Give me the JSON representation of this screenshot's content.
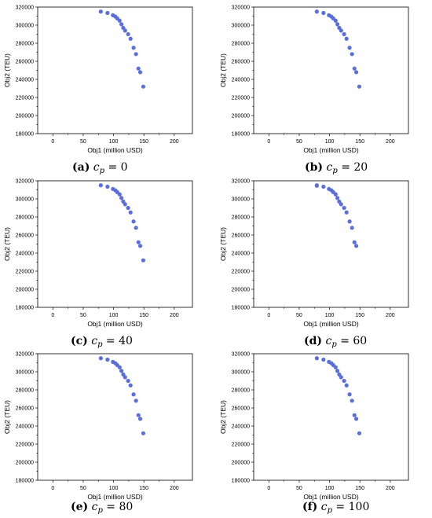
{
  "chart_data": [
    {
      "type": "scatter",
      "label": "(a)",
      "param": "c",
      "param_sub": "p",
      "param_value": "0",
      "xlabel": "Obj1 (million USD)",
      "ylabel": "Obj2 (TEU)",
      "xlim": [
        -25,
        230
      ],
      "ylim": [
        180000,
        320000
      ],
      "xticks": [
        0,
        50,
        100,
        150,
        200
      ],
      "yticks": [
        180000,
        200000,
        220000,
        240000,
        260000,
        280000,
        300000,
        320000
      ],
      "marker_color": "#5b6fdc",
      "points": [
        [
          79,
          315000
        ],
        [
          90,
          313500
        ],
        [
          99,
          311000
        ],
        [
          103,
          309500
        ],
        [
          106,
          307500
        ],
        [
          110,
          305000
        ],
        [
          113,
          301000
        ],
        [
          116,
          297000
        ],
        [
          119,
          294000
        ],
        [
          124,
          290000
        ],
        [
          128,
          285000
        ],
        [
          133,
          275000
        ],
        [
          137,
          268000
        ],
        [
          141,
          252000
        ],
        [
          144,
          248000
        ],
        [
          149,
          232000
        ]
      ]
    },
    {
      "type": "scatter",
      "label": "(b)",
      "param": "c",
      "param_sub": "p",
      "param_value": "20",
      "xlabel": "Obj1 (million USD)",
      "ylabel": "Obj2 (TEU)",
      "xlim": [
        -25,
        230
      ],
      "ylim": [
        180000,
        320000
      ],
      "xticks": [
        0,
        50,
        100,
        150,
        200
      ],
      "yticks": [
        180000,
        200000,
        220000,
        240000,
        260000,
        280000,
        300000,
        320000
      ],
      "marker_color": "#5b6fdc",
      "points": [
        [
          79,
          315000
        ],
        [
          90,
          313500
        ],
        [
          99,
          311000
        ],
        [
          103,
          309500
        ],
        [
          106,
          307500
        ],
        [
          110,
          305000
        ],
        [
          113,
          301000
        ],
        [
          116,
          297000
        ],
        [
          119,
          294000
        ],
        [
          124,
          290000
        ],
        [
          128,
          285000
        ],
        [
          133,
          275000
        ],
        [
          137,
          268000
        ],
        [
          141,
          252000
        ],
        [
          144,
          248000
        ],
        [
          149,
          232000
        ]
      ]
    },
    {
      "type": "scatter",
      "label": "(c)",
      "param": "c",
      "param_sub": "p",
      "param_value": "40",
      "xlabel": "Obj1 (million USD)",
      "ylabel": "Obj2 (TEU)",
      "xlim": [
        -25,
        230
      ],
      "ylim": [
        180000,
        320000
      ],
      "xticks": [
        0,
        50,
        100,
        150,
        200
      ],
      "yticks": [
        180000,
        200000,
        220000,
        240000,
        260000,
        280000,
        300000,
        320000
      ],
      "marker_color": "#5b6fdc",
      "points": [
        [
          79,
          315000
        ],
        [
          90,
          313500
        ],
        [
          99,
          311000
        ],
        [
          103,
          309500
        ],
        [
          106,
          307500
        ],
        [
          110,
          305000
        ],
        [
          113,
          301000
        ],
        [
          116,
          297000
        ],
        [
          119,
          294000
        ],
        [
          124,
          290000
        ],
        [
          128,
          285000
        ],
        [
          133,
          275000
        ],
        [
          137,
          268000
        ],
        [
          141,
          252000
        ],
        [
          144,
          248000
        ],
        [
          149,
          232000
        ]
      ]
    },
    {
      "type": "scatter",
      "label": "(d)",
      "param": "c",
      "param_sub": "p",
      "param_value": "60",
      "xlabel": "Obj1 (million USD)",
      "ylabel": "Obj2 (TEU)",
      "xlim": [
        -25,
        230
      ],
      "ylim": [
        180000,
        320000
      ],
      "xticks": [
        0,
        50,
        100,
        150,
        200
      ],
      "yticks": [
        180000,
        200000,
        220000,
        240000,
        260000,
        280000,
        300000,
        320000
      ],
      "marker_color": "#5b6fdc",
      "points": [
        [
          79,
          315000
        ],
        [
          79,
          314500
        ],
        [
          90,
          313500
        ],
        [
          99,
          311000
        ],
        [
          103,
          309500
        ],
        [
          106,
          307500
        ],
        [
          110,
          305000
        ],
        [
          113,
          301000
        ],
        [
          116,
          297000
        ],
        [
          119,
          294000
        ],
        [
          124,
          290000
        ],
        [
          128,
          285000
        ],
        [
          133,
          275000
        ],
        [
          137,
          268000
        ],
        [
          141,
          252000
        ],
        [
          144,
          248000
        ]
      ]
    },
    {
      "type": "scatter",
      "label": "(e)",
      "param": "c",
      "param_sub": "p",
      "param_value": "80",
      "xlabel": "Obj1 (million USD)",
      "ylabel": "Obj2 (TEU)",
      "xlim": [
        -25,
        230
      ],
      "ylim": [
        180000,
        320000
      ],
      "xticks": [
        0,
        50,
        100,
        150,
        200
      ],
      "yticks": [
        180000,
        200000,
        220000,
        240000,
        260000,
        280000,
        300000,
        320000
      ],
      "marker_color": "#5b6fdc",
      "points": [
        [
          79,
          315000
        ],
        [
          90,
          313500
        ],
        [
          99,
          311000
        ],
        [
          103,
          309500
        ],
        [
          106,
          307500
        ],
        [
          110,
          305000
        ],
        [
          113,
          301000
        ],
        [
          116,
          297000
        ],
        [
          119,
          294000
        ],
        [
          124,
          290000
        ],
        [
          128,
          285000
        ],
        [
          133,
          275000
        ],
        [
          137,
          268000
        ],
        [
          141,
          252000
        ],
        [
          144,
          248000
        ],
        [
          149,
          232000
        ]
      ]
    },
    {
      "type": "scatter",
      "label": "(f)",
      "param": "c",
      "param_sub": "p",
      "param_value": "100",
      "xlabel": "Obj1 (million USD)",
      "ylabel": "Obj2 (TEU)",
      "xlim": [
        -25,
        230
      ],
      "ylim": [
        180000,
        320000
      ],
      "xticks": [
        0,
        50,
        100,
        150,
        200
      ],
      "yticks": [
        180000,
        200000,
        220000,
        240000,
        260000,
        280000,
        300000,
        320000
      ],
      "marker_color": "#5b6fdc",
      "points": [
        [
          79,
          315000
        ],
        [
          90,
          313500
        ],
        [
          99,
          311000
        ],
        [
          103,
          309500
        ],
        [
          106,
          307500
        ],
        [
          110,
          305000
        ],
        [
          113,
          301000
        ],
        [
          116,
          297000
        ],
        [
          119,
          294000
        ],
        [
          124,
          290000
        ],
        [
          128,
          285000
        ],
        [
          133,
          275000
        ],
        [
          137,
          268000
        ],
        [
          141,
          252000
        ],
        [
          144,
          248000
        ],
        [
          149,
          232000
        ]
      ]
    }
  ]
}
